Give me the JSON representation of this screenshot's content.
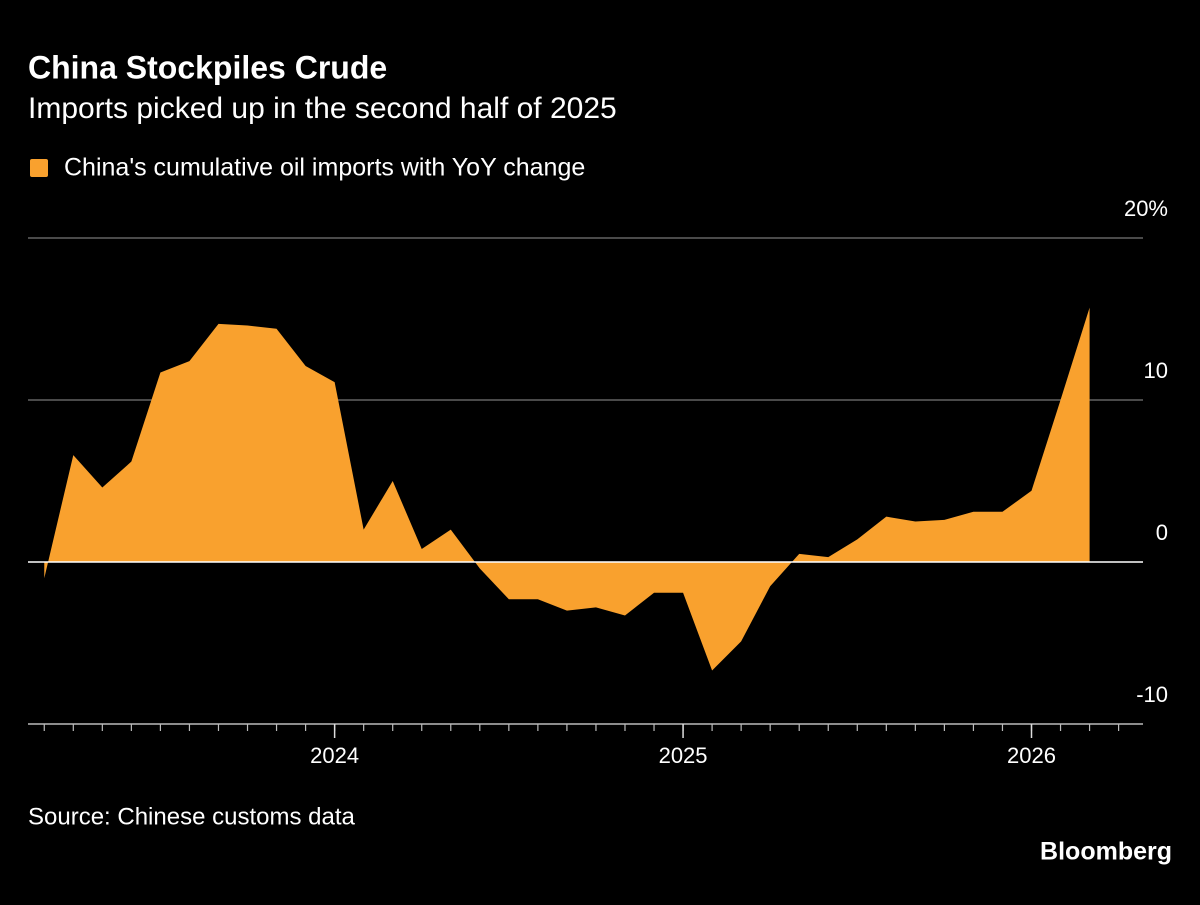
{
  "chart_data": {
    "type": "area",
    "title": "China Stockpiles Crude",
    "subtitle": "Imports picked up in the second half of 2025",
    "source": "Source: Chinese customs data",
    "brand": "Bloomberg",
    "x": [
      2023.1667,
      2023.25,
      2023.3333,
      2023.4167,
      2023.5,
      2023.5833,
      2023.6667,
      2023.75,
      2023.8333,
      2023.9167,
      2024.0,
      2024.0833,
      2024.1667,
      2024.25,
      2024.3333,
      2024.4167,
      2024.5,
      2024.5833,
      2024.6667,
      2024.75,
      2024.8333,
      2024.9167,
      2025.0,
      2025.0833,
      2025.1667,
      2025.25,
      2025.3333,
      2025.4167,
      2025.5,
      2025.5833,
      2025.6667,
      2025.75,
      2025.8333,
      2025.9167,
      2026.0,
      2026.0833,
      2026.1667
    ],
    "series": [
      {
        "name": "China's cumulative oil imports with YoY change",
        "color": "#f9a12e",
        "values": [
          -1.0,
          6.6,
          4.6,
          6.2,
          11.7,
          12.4,
          14.7,
          14.6,
          14.4,
          12.1,
          11.1,
          2.0,
          5.0,
          0.8,
          2.0,
          -0.4,
          -2.3,
          -2.3,
          -3.0,
          -2.8,
          -3.3,
          -1.9,
          -1.9,
          -6.7,
          -4.9,
          -1.5,
          0.5,
          0.3,
          1.4,
          2.8,
          2.5,
          2.6,
          3.1,
          3.1,
          4.4,
          10.0,
          15.7
        ]
      }
    ],
    "xlim": [
      2023.12,
      2026.32
    ],
    "xticks": [
      2024,
      2025,
      2026
    ],
    "ylim": [
      -10,
      20
    ],
    "yticks": [
      -10,
      0,
      10,
      {
        "value": 20,
        "label": "20%"
      }
    ],
    "grid": true
  }
}
